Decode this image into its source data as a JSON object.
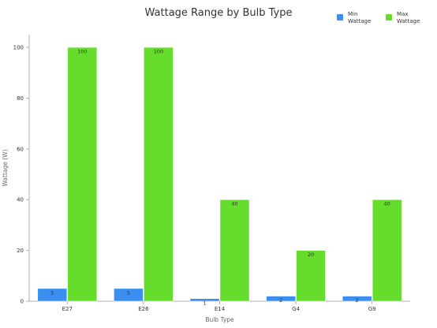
{
  "chart_data": {
    "type": "bar",
    "title": "Wattage Range by Bulb Type",
    "xlabel": "Bulb Type",
    "ylabel": "Wattage (W)",
    "categories": [
      "E27",
      "E26",
      "E14",
      "G4",
      "G9"
    ],
    "series": [
      {
        "name": "Min\nWattage",
        "values": [
          5,
          5,
          1,
          2,
          2
        ],
        "color": "#3a8ff0"
      },
      {
        "name": "Max\nWattage",
        "values": [
          100,
          100,
          40,
          20,
          40
        ],
        "color": "#66dd2c"
      }
    ],
    "ylim": [
      0,
      105
    ],
    "yticks": [
      0,
      20,
      40,
      60,
      80,
      100
    ],
    "data_labels": true,
    "grid": false,
    "legend_position": "top-right"
  },
  "legend": {
    "min_label": "Min\nWattage",
    "max_label": "Max\nWattage"
  },
  "colors": {
    "axis": "#b0b0b0",
    "text": "#333333",
    "label": "#666666"
  }
}
